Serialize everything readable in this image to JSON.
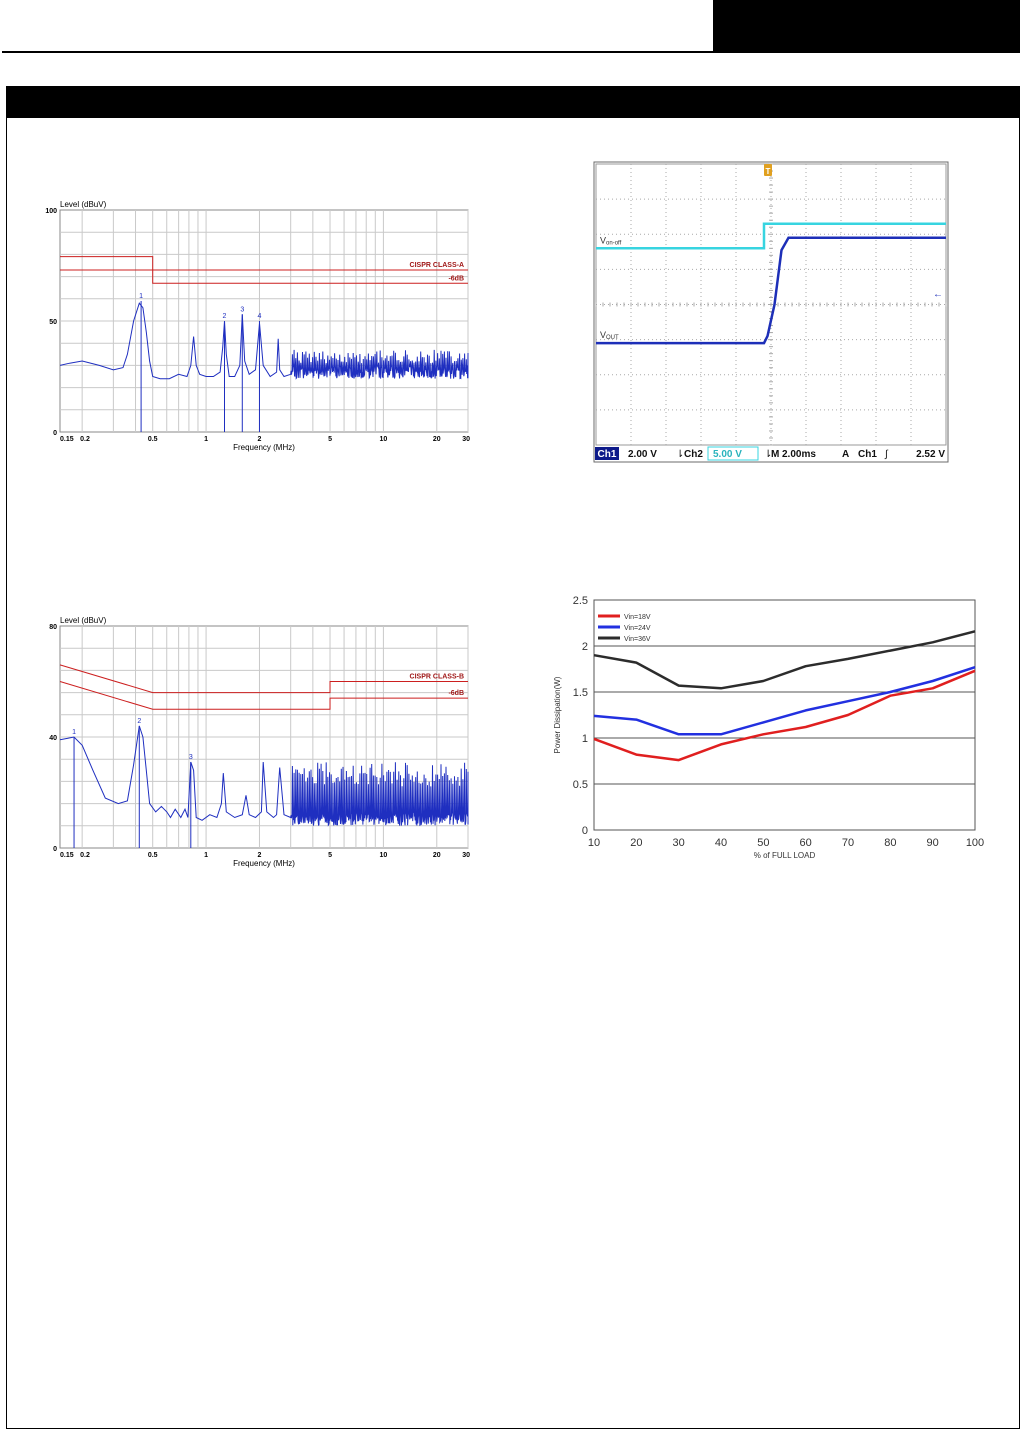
{
  "colors": {
    "emi_trace": "#1f2fc0",
    "limit_line": "#cc1f1f",
    "limit_label": "#a01818",
    "grid": "#c9c9c9",
    "scope_grid": "#a9a9a9",
    "scope_ch1": "#1d2fb8",
    "scope_ch2": "#37d4e0",
    "curve_18v": "#e01f1f",
    "curve_24v": "#2230e0",
    "curve_36v": "#2c2c2c"
  },
  "chart_data": [
    {
      "id": "emi_class_a",
      "type": "line",
      "title": "",
      "ylabel": "Level (dBuV)",
      "xlabel": "Frequency (MHz)",
      "x_scale": "log",
      "xlim": [
        0.15,
        30
      ],
      "ylim": [
        0,
        100
      ],
      "x_ticks": [
        "0.15",
        "0.2",
        "0.5",
        "1",
        "2",
        "5",
        "10",
        "20",
        "30"
      ],
      "y_ticks": [
        "0",
        "50",
        "100"
      ],
      "limit_lines": [
        {
          "name": "CISPR CLASS-A",
          "points": [
            [
              0.15,
              79
            ],
            [
              0.5,
              79
            ],
            [
              0.5,
              73
            ],
            [
              30,
              73
            ]
          ]
        },
        {
          "name": "-6dB",
          "points": [
            [
              0.15,
              73
            ],
            [
              0.5,
              73
            ],
            [
              0.5,
              67
            ],
            [
              30,
              67
            ]
          ]
        }
      ],
      "markers": [
        {
          "label": "1",
          "x": 0.43,
          "y": 59
        },
        {
          "label": "2",
          "x": 1.27,
          "y": 50
        },
        {
          "label": "3",
          "x": 1.6,
          "y": 53
        },
        {
          "label": "4",
          "x": 2.0,
          "y": 50
        }
      ],
      "series": [
        {
          "x": [
            0.15,
            0.17,
            0.2,
            0.25,
            0.3,
            0.34,
            0.36,
            0.39,
            0.42,
            0.44,
            0.46,
            0.48,
            0.5,
            0.55,
            0.62,
            0.7,
            0.78,
            0.82,
            0.85,
            0.88,
            0.92,
            1.0,
            1.1,
            1.2,
            1.24,
            1.27,
            1.3,
            1.35,
            1.45,
            1.55,
            1.6,
            1.65,
            1.75,
            1.9,
            2.0,
            2.1,
            2.3,
            2.5,
            2.55,
            2.6,
            2.75,
            3.0
          ],
          "y": [
            30,
            31,
            32,
            30,
            28,
            29,
            35,
            50,
            58,
            56,
            45,
            32,
            25,
            24,
            24,
            26,
            25,
            30,
            43,
            30,
            26,
            25,
            25,
            27,
            38,
            50,
            35,
            25,
            25,
            30,
            53,
            32,
            26,
            28,
            49,
            30,
            25,
            27,
            42,
            28,
            25,
            26
          ]
        }
      ],
      "noise_floor": {
        "x_start": 3.0,
        "x_end": 30,
        "base": [
          24,
          30
        ],
        "peaks": [
          31,
          37
        ]
      }
    },
    {
      "id": "startup_scope",
      "type": "line",
      "title": "",
      "ylabel": "",
      "xlabel": "",
      "xlim": [
        -10,
        10
      ],
      "ylim": [
        -4,
        4
      ],
      "trigger_marker": "T",
      "ground_marker": "←",
      "series": [
        {
          "name": "Von-off",
          "label_main": "V",
          "label_sub": "on-off",
          "x": [
            -10,
            -0.4,
            -0.4,
            10
          ],
          "y": [
            1.6,
            1.6,
            2.3,
            2.3
          ]
        },
        {
          "name": "Vout",
          "label_main": "V",
          "label_sub": "OUT",
          "x": [
            -10,
            -0.4,
            -0.2,
            0.2,
            0.6,
            1.0,
            10
          ],
          "y": [
            -1.1,
            -1.1,
            -0.9,
            0,
            1.55,
            1.9,
            1.9
          ]
        }
      ],
      "readout": {
        "ch1_badge": "Ch1",
        "ch1_scale": "2.00 V",
        "ch2_icon": "⇂",
        "ch2_label": "Ch2",
        "ch2_scale": "5.00 V",
        "time_icon": "⇂",
        "time_label": "M",
        "time_scale": "2.00ms",
        "trig_mode": "A",
        "trig_src": "Ch1",
        "trig_slope": "∫",
        "trig_level": "2.52 V"
      }
    },
    {
      "id": "emi_class_b",
      "type": "line",
      "title": "",
      "ylabel": "Level (dBuV)",
      "xlabel": "Frequency (MHz)",
      "x_scale": "log",
      "xlim": [
        0.15,
        30
      ],
      "ylim": [
        0,
        80
      ],
      "x_ticks": [
        "0.15",
        "0.2",
        "0.5",
        "1",
        "2",
        "5",
        "10",
        "20",
        "30"
      ],
      "y_ticks": [
        "0",
        "40",
        "80"
      ],
      "limit_lines": [
        {
          "name": "CISPR CLASS-B",
          "points": [
            [
              0.15,
              66
            ],
            [
              0.5,
              56
            ],
            [
              5,
              56
            ],
            [
              5,
              60
            ],
            [
              30,
              60
            ]
          ]
        },
        {
          "name": "-6dB",
          "points": [
            [
              0.15,
              60
            ],
            [
              0.5,
              50
            ],
            [
              5,
              50
            ],
            [
              5,
              54
            ],
            [
              30,
              54
            ]
          ]
        }
      ],
      "markers": [
        {
          "label": "1",
          "x": 0.18,
          "y": 40
        },
        {
          "label": "2",
          "x": 0.42,
          "y": 44
        },
        {
          "label": "3",
          "x": 0.82,
          "y": 31
        }
      ],
      "series": [
        {
          "x": [
            0.15,
            0.165,
            0.18,
            0.2,
            0.23,
            0.27,
            0.32,
            0.36,
            0.39,
            0.42,
            0.44,
            0.46,
            0.48,
            0.52,
            0.56,
            0.6,
            0.63,
            0.67,
            0.72,
            0.76,
            0.79,
            0.82,
            0.85,
            0.88,
            0.95,
            1.05,
            1.15,
            1.22,
            1.25,
            1.3,
            1.45,
            1.6,
            1.68,
            1.75,
            1.9,
            2.05,
            2.1,
            2.2,
            2.4,
            2.5,
            2.6,
            2.75,
            3.0
          ],
          "y": [
            39,
            39.5,
            40,
            37,
            28,
            18,
            16,
            17,
            30,
            44,
            40,
            28,
            16,
            13,
            15,
            13,
            11,
            14,
            11,
            14,
            11,
            31,
            28,
            11,
            10,
            12,
            11,
            16,
            27,
            13,
            11,
            12,
            19,
            12,
            11,
            13,
            31,
            13,
            11,
            12,
            29,
            12,
            11
          ]
        }
      ],
      "noise_floor": {
        "x_start": 3.0,
        "x_end": 30,
        "base": [
          8,
          13
        ],
        "peaks": [
          22,
          31
        ]
      }
    },
    {
      "id": "power_dissipation",
      "type": "line",
      "title": "",
      "ylabel": "Power Dissipation(W)",
      "xlabel": "% of FULL LOAD",
      "xlim": [
        10,
        100
      ],
      "ylim": [
        0,
        2.5
      ],
      "x_ticks": [
        "10",
        "20",
        "30",
        "40",
        "50",
        "60",
        "70",
        "80",
        "90",
        "100"
      ],
      "y_ticks": [
        "0",
        "0.5",
        "1",
        "1.5",
        "2",
        "2.5"
      ],
      "grid": "horizontal",
      "legend_position": "top-left",
      "categories": [
        10,
        20,
        30,
        40,
        50,
        60,
        70,
        80,
        90,
        100
      ],
      "series": [
        {
          "name": "Vin=18V",
          "values": [
            0.99,
            0.82,
            0.76,
            0.93,
            1.04,
            1.12,
            1.25,
            1.46,
            1.54,
            1.73
          ]
        },
        {
          "name": "Vin=24V",
          "values": [
            1.24,
            1.2,
            1.04,
            1.04,
            1.17,
            1.3,
            1.4,
            1.5,
            1.62,
            1.77
          ]
        },
        {
          "name": "Vin=36V",
          "values": [
            1.9,
            1.82,
            1.57,
            1.54,
            1.62,
            1.78,
            1.86,
            1.95,
            2.04,
            2.16
          ]
        }
      ]
    }
  ]
}
